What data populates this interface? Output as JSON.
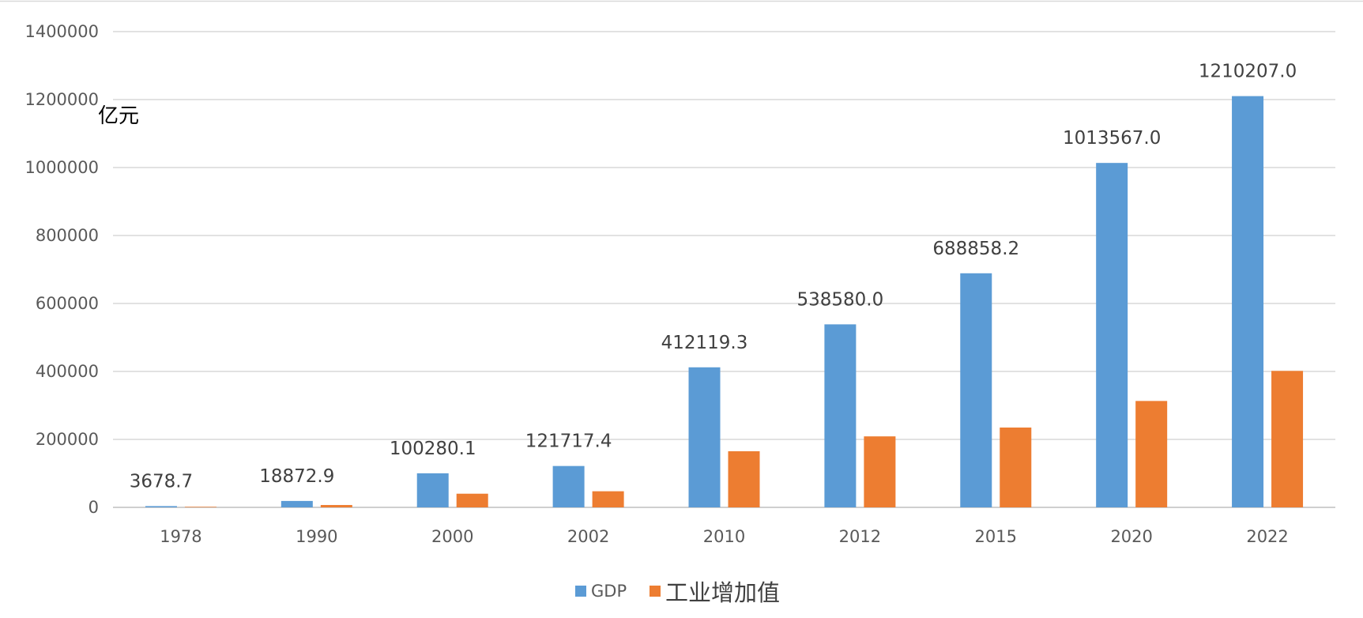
{
  "chart_data": {
    "type": "bar",
    "unit": "亿元",
    "categories": [
      "1978",
      "1990",
      "2000",
      "2002",
      "2010",
      "2012",
      "2015",
      "2020",
      "2022"
    ],
    "series": [
      {
        "name": "GDP",
        "color": "#5b9bd5",
        "values": [
          3678.7,
          18872.9,
          100280.1,
          121717.4,
          412119.3,
          538580.0,
          688858.2,
          1013567.0,
          1210207.0
        ],
        "data_labels": [
          "3678.7",
          "18872.9",
          "100280.1",
          "121717.4",
          "412119.3",
          "538580.0",
          "688858.2",
          "1013567.0",
          "1210207.0"
        ]
      },
      {
        "name": "工业增加值",
        "color": "#ed7d31",
        "values": [
          1600,
          6900,
          40200,
          47400,
          165100,
          208900,
          234900,
          313100,
          401600
        ]
      }
    ],
    "y_ticks": [
      "0",
      "200000",
      "400000",
      "600000",
      "800000",
      "1000000",
      "1200000",
      "1400000"
    ],
    "ylim": [
      0,
      1400000
    ],
    "grid": true,
    "legend_position": "bottom"
  }
}
